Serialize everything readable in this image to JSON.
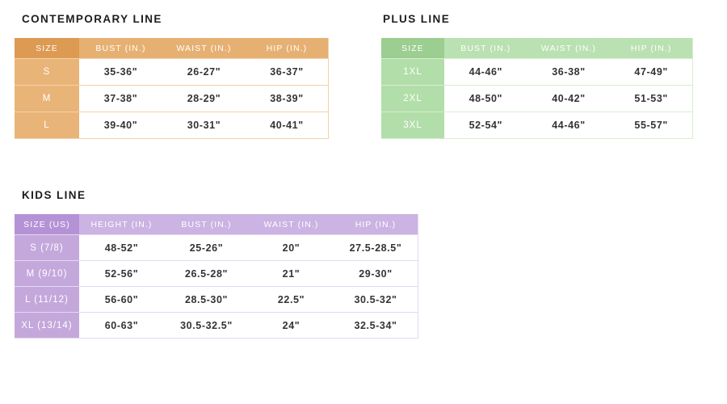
{
  "sections": [
    {
      "id": "contemporary",
      "title": "CONTEMPORARY LINE",
      "theme": {
        "dark": "#DC9A53",
        "header_light": "#E7B073",
        "column": "#E9B478",
        "line": "#F3D2A7"
      },
      "columns": [
        "SIZE",
        "BUST (IN.)",
        "WAIST (IN.)",
        "HIP (IN.)"
      ],
      "rows": [
        [
          "S",
          "35-36\"",
          "26-27\"",
          "36-37\""
        ],
        [
          "M",
          "37-38\"",
          "28-29\"",
          "38-39\""
        ],
        [
          "L",
          "39-40\"",
          "30-31\"",
          "40-41\""
        ]
      ]
    },
    {
      "id": "plus",
      "title": "PLUS LINE",
      "theme": {
        "dark": "#9BCE90",
        "header_light": "#BAE1B1",
        "column": "#B2DEA9",
        "line": "#D7EDD1"
      },
      "columns": [
        "SIZE",
        "BUST (IN.)",
        "WAIST (IN.)",
        "HIP (IN.)"
      ],
      "rows": [
        [
          "1XL",
          "44-46\"",
          "36-38\"",
          "47-49\""
        ],
        [
          "2XL",
          "48-50\"",
          "40-42\"",
          "51-53\""
        ],
        [
          "3XL",
          "52-54\"",
          "44-46\"",
          "55-57\""
        ]
      ]
    },
    {
      "id": "kids",
      "title": "KIDS LINE",
      "theme": {
        "dark": "#B592D6",
        "header_light": "#CBB3E3",
        "column": "#C4A8DC",
        "line": "#E4D8F1"
      },
      "columns": [
        "SIZE (US)",
        "HEIGHT (IN.)",
        "BUST (IN.)",
        "WAIST (IN.)",
        "HIP (IN.)"
      ],
      "rows": [
        [
          "S (7/8)",
          "48-52\"",
          "25-26\"",
          "20\"",
          "27.5-28.5\""
        ],
        [
          "M (9/10)",
          "52-56\"",
          "26.5-28\"",
          "21\"",
          "29-30\""
        ],
        [
          "L (11/12)",
          "56-60\"",
          "28.5-30\"",
          "22.5\"",
          "30.5-32\""
        ],
        [
          "XL (13/14)",
          "60-63\"",
          "30.5-32.5\"",
          "24\"",
          "32.5-34\""
        ]
      ]
    }
  ]
}
